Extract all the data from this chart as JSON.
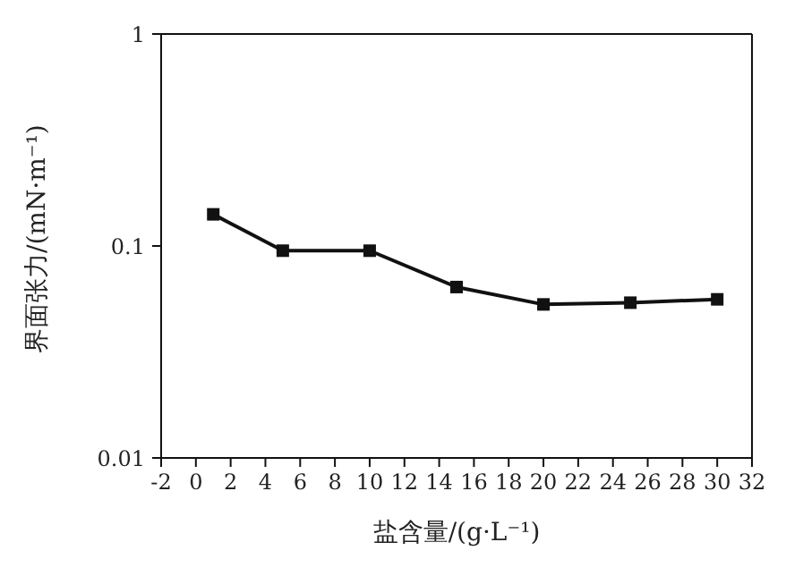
{
  "chart_data": {
    "type": "line",
    "xlabel": "盐含量/(g·L⁻¹)",
    "ylabel": "界面张力/(mN·m⁻¹)",
    "x": [
      1,
      5,
      10,
      15,
      20,
      25,
      30
    ],
    "series": [
      {
        "color": "#111111",
        "values": [
          0.141,
          0.095,
          0.095,
          0.064,
          0.053,
          0.054,
          0.056
        ]
      }
    ],
    "xlim": [
      -2,
      32
    ],
    "xticks": [
      -2,
      0,
      2,
      4,
      6,
      8,
      10,
      12,
      14,
      16,
      18,
      20,
      22,
      24,
      26,
      28,
      30,
      32
    ],
    "ylim": [
      0.01,
      1
    ],
    "yticks": [
      0.01,
      0.1,
      1
    ],
    "log": "y",
    "marker": "square",
    "line_style": "solid",
    "grid": false,
    "legend": false
  }
}
